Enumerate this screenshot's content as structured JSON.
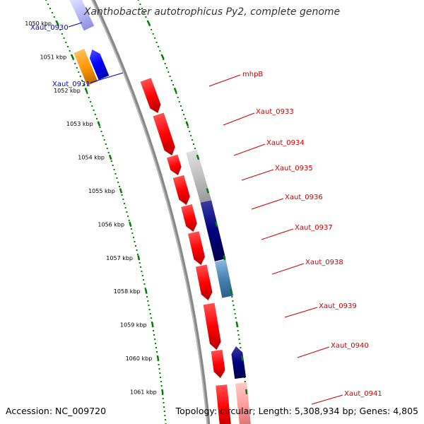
{
  "title": "Xanthobacter autotrophicus Py2, complete genome",
  "accession": "Accession: NC_009720",
  "summary": "Topology: circular; Length: 5,308,934 bp; Genes: 4,805",
  "ticks": [
    "1050 kbp",
    "1051 kbp",
    "1052 kbp",
    "1053 kbp",
    "1054 kbp",
    "1055 kbp",
    "1056 kbp",
    "1057 kbp",
    "1058 kbp",
    "1059 kbp",
    "1060 kbp",
    "1061 kbp"
  ],
  "colors": {
    "label_forward": "#cc0000",
    "label_reverse": "#0000cc",
    "backbone": "#999999",
    "tick": "#008000"
  },
  "gene_labels": [
    {
      "name": "Xaut_0930",
      "color": "#0000cc"
    },
    {
      "name": "Xaut_0931",
      "color": "#0000cc"
    },
    {
      "name": "mhpB",
      "color": "#cc0000"
    },
    {
      "name": "Xaut_0933",
      "color": "#cc0000"
    },
    {
      "name": "Xaut_0934",
      "color": "#cc0000"
    },
    {
      "name": "Xaut_0935",
      "color": "#cc0000"
    },
    {
      "name": "Xaut_0936",
      "color": "#cc0000"
    },
    {
      "name": "Xaut_0937",
      "color": "#cc0000"
    },
    {
      "name": "Xaut_0938",
      "color": "#cc0000"
    },
    {
      "name": "Xaut_0939",
      "color": "#cc0000"
    },
    {
      "name": "Xaut_0940",
      "color": "#cc0000"
    },
    {
      "name": "Xaut_0941",
      "color": "#cc0000"
    }
  ]
}
